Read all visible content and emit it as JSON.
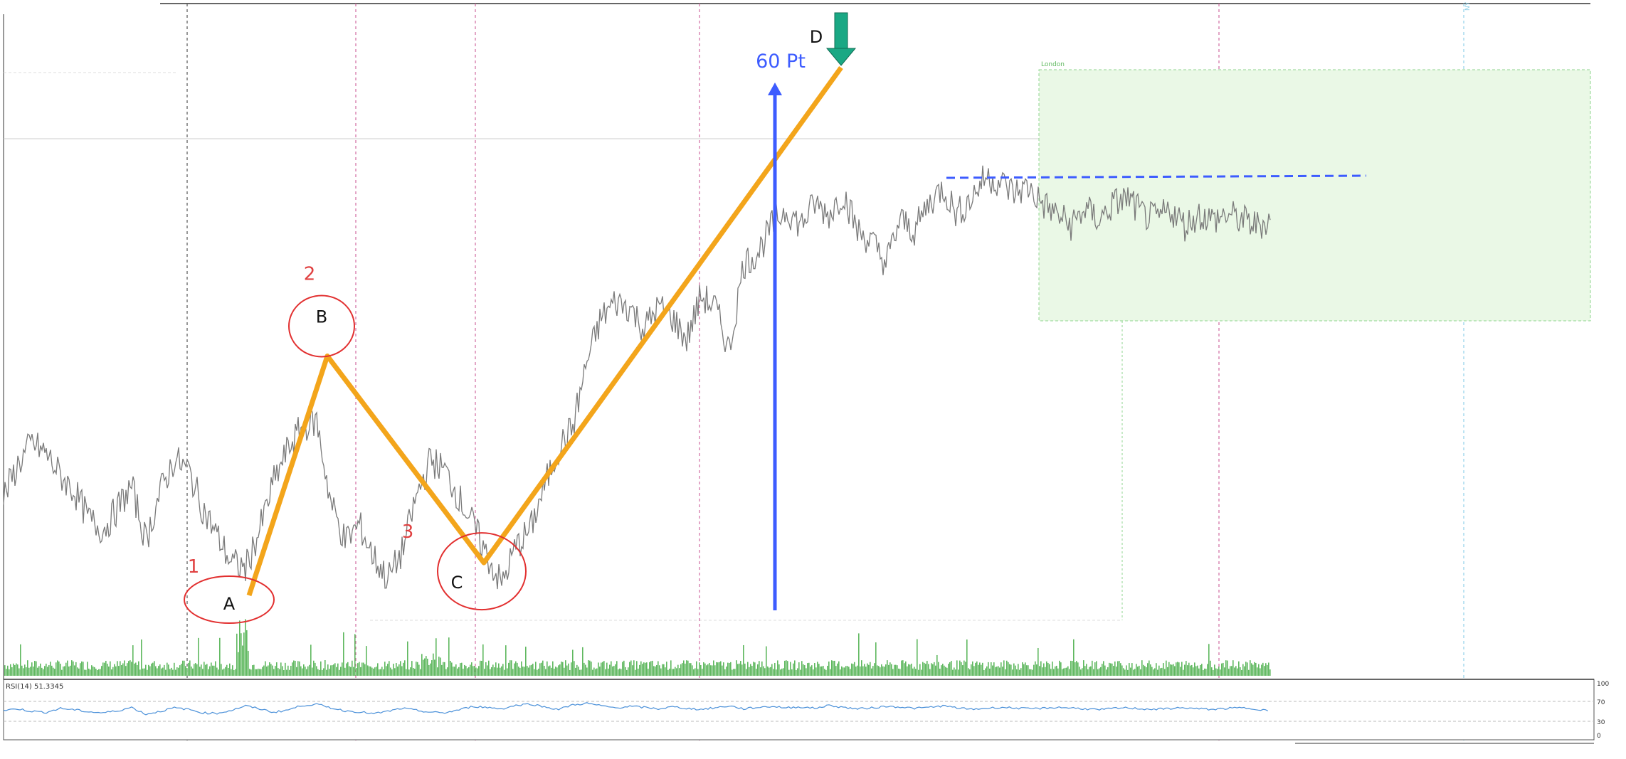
{
  "chart_data": {
    "type": "line",
    "title": "",
    "xlabel": "",
    "ylabel": "",
    "grid": false,
    "colors": {
      "price": "#7a7a7a",
      "volume": "#5fb85f",
      "rsi": "#4a90d9",
      "pattern": "#f3a51b",
      "arrow": "#3d5cff",
      "target_arrow": "#1aa884",
      "session_box": "#eaf8e6",
      "session_border": "#8fd68f",
      "circles": "#e23030",
      "numbers": "#e04040",
      "resistance": "#3d5cff",
      "vline_pink": "#d06aa0",
      "vline_dark": "#555555",
      "vline_cyan": "#8fd0e8"
    },
    "series": [
      {
        "type": "price",
        "x": [
          0,
          20,
          40,
          60,
          80,
          100,
          120,
          140,
          160,
          180,
          200,
          220,
          240,
          260,
          280,
          300,
          320,
          340,
          360,
          380,
          400,
          420,
          440,
          460,
          480,
          500,
          520,
          540,
          560,
          580,
          600,
          620,
          640,
          660,
          680,
          700,
          720,
          740,
          760,
          780,
          800,
          820,
          840,
          860,
          880,
          900,
          920,
          940,
          960,
          980,
          1000,
          1020,
          1040,
          1060,
          1080,
          1100,
          1120,
          1140,
          1160,
          1180,
          1200,
          1220,
          1240,
          1260,
          1280,
          1300,
          1320,
          1340,
          1360,
          1380,
          1400,
          1420,
          1440,
          1460,
          1480,
          1500,
          1520,
          1540,
          1560,
          1580,
          1600,
          1620,
          1640,
          1660,
          1680,
          1700,
          1720,
          1740,
          1760,
          1780
        ],
        "y": [
          21,
          27,
          31,
          29,
          25,
          22,
          17,
          15,
          19,
          23,
          13,
          22,
          28,
          26,
          19,
          14,
          9,
          8,
          15,
          24,
          30,
          34,
          35,
          20,
          13,
          16,
          10,
          6,
          11,
          21,
          28,
          26,
          21,
          16,
          10,
          5,
          12,
          15,
          23,
          30,
          34,
          46,
          54,
          57,
          56,
          52,
          56,
          54,
          50,
          58,
          56,
          48,
          64,
          66,
          71,
          74,
          71,
          75,
          73,
          77,
          70,
          68,
          64,
          72,
          70,
          75,
          78,
          73,
          76,
          80,
          79,
          77,
          78,
          75,
          73,
          71,
          74,
          72,
          75,
          76,
          73,
          72,
          74,
          71,
          73,
          72,
          73,
          72,
          71,
          72
        ]
      }
    ],
    "rsi": {
      "label": "RSI(14) 51.3345",
      "levels": [
        "100",
        "70",
        "30",
        "0"
      ],
      "values": [
        52,
        55,
        50,
        48,
        56,
        53,
        49,
        47,
        51,
        58,
        44,
        50,
        57,
        54,
        47,
        46,
        52,
        61,
        55,
        48,
        53,
        62,
        64,
        57,
        51,
        49,
        45,
        50,
        56,
        52,
        48,
        47,
        53,
        60,
        58,
        55,
        62,
        65,
        59,
        54,
        63,
        66,
        61,
        57,
        60,
        58,
        55,
        59,
        56,
        54,
        57,
        61,
        55,
        58,
        60,
        57,
        59,
        56,
        62,
        58,
        55,
        57,
        60,
        59,
        56,
        58,
        61,
        57,
        54,
        56,
        58,
        57,
        55,
        56,
        58,
        57,
        55,
        53,
        56,
        57,
        55,
        54,
        56,
        57,
        55,
        54,
        56,
        57,
        55,
        51
      ]
    },
    "pattern": {
      "points": [
        {
          "label": "A",
          "number": "1",
          "x": 345,
          "y": 3
        },
        {
          "label": "B",
          "number": "2",
          "x": 455,
          "y": 47
        },
        {
          "label": "C",
          "number": "3",
          "x": 675,
          "y": 9
        },
        {
          "label": "D",
          "number": "",
          "x": 1177,
          "y": 100
        }
      ]
    },
    "annotations": {
      "arrow_label": "60 Pt",
      "session_label": "London",
      "right_label": "NY"
    }
  }
}
